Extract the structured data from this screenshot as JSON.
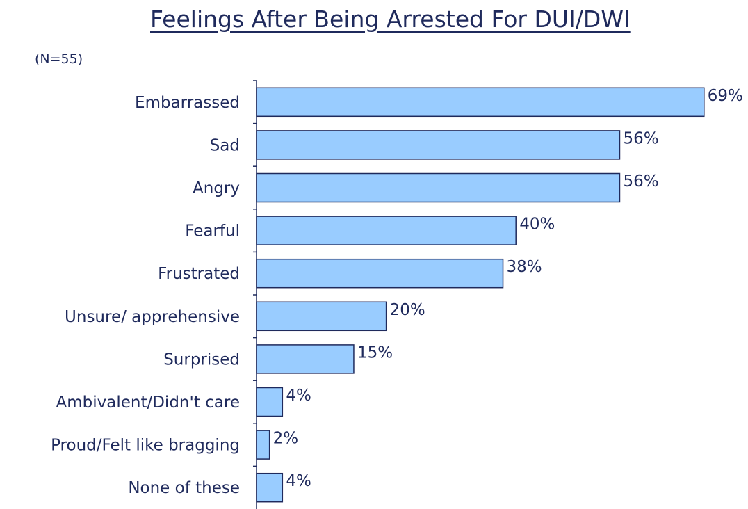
{
  "title": "Feelings After Being Arrested For DUI/DWI",
  "note": "(N=55)",
  "colors": {
    "bar_fill": "#99ccff",
    "bar_stroke": "#1f2a5c",
    "text": "#1f2a5c"
  },
  "chart_data": {
    "type": "bar",
    "orientation": "horizontal",
    "title": "Feelings After Being Arrested For DUI/DWI",
    "categories": [
      "Embarrassed",
      "Sad",
      "Angry",
      "Fearful",
      "Frustrated",
      "Unsure/ apprehensive",
      "Surprised",
      "Ambivalent/Didn't care",
      "Proud/Felt like bragging",
      "None of these"
    ],
    "values": [
      69,
      56,
      56,
      40,
      38,
      20,
      15,
      4,
      2,
      4
    ],
    "value_labels": [
      "69%",
      "56%",
      "56%",
      "40%",
      "38%",
      "20%",
      "15%",
      "4%",
      "2%",
      "4%"
    ],
    "xlim": [
      0,
      100
    ],
    "grid": false,
    "legend": "none"
  }
}
